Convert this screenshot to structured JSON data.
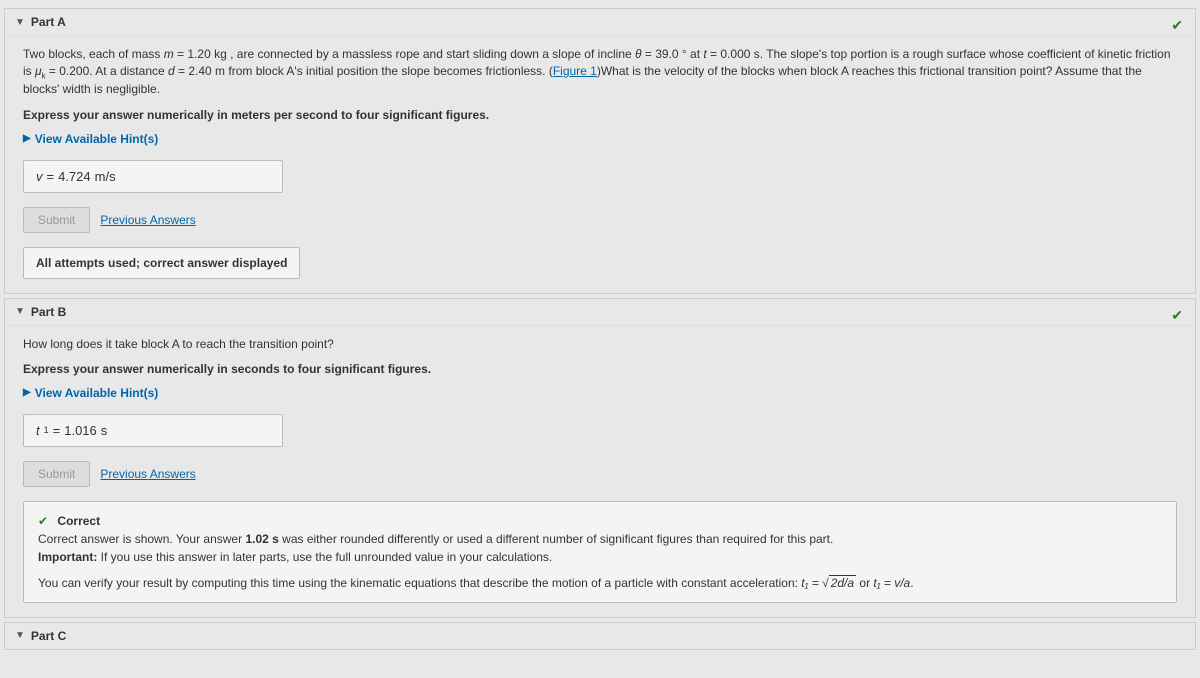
{
  "partA": {
    "title": "Part A",
    "problem_html": "Two blocks, each of mass <span class='it'>m</span> = 1.20 kg , are connected by a massless rope and start sliding down a slope of incline <span class='it'>θ</span> = 39.0 ° at <span class='it'>t</span> = 0.000 s. The slope's top portion is a rough surface whose coefficient of kinetic friction is <span class='it'>μ</span><span class='sub2'>k</span> = 0.200. At a distance <span class='it'>d</span> = 2.40 m from block A's initial position the slope becomes frictionless. (<span class='link' data-name='figure-link' data-interactable='true'>Figure 1</span>)What is the velocity of the blocks when block A reaches this frictional transition point? Assume that the blocks' width is negligible.",
    "instruction": "Express your answer numerically in meters per second to four significant figures.",
    "hints_label": "View Available Hint(s)",
    "answer_var": "v",
    "answer_value": "4.724",
    "answer_unit": "m/s",
    "submit_label": "Submit",
    "prev_label": "Previous Answers",
    "feedback": "All attempts used; correct answer displayed"
  },
  "partB": {
    "title": "Part B",
    "question": "How long does it take block A to reach the transition point?",
    "instruction": "Express your answer numerically in seconds to four significant figures.",
    "hints_label": "View Available Hint(s)",
    "answer_var": "t",
    "answer_sub": "1",
    "answer_value": "1.016",
    "answer_unit": "s",
    "submit_label": "Submit",
    "prev_label": "Previous Answers",
    "correct_head": "Correct",
    "correct_line1_a": "Correct answer is shown. Your answer ",
    "correct_line1_b": "1.02 s",
    "correct_line1_c": " was either rounded differently or used a different number of significant figures than required for this part.",
    "important_label": "Important:",
    "important_text": " If you use this answer in later parts, use the full unrounded value in your calculations.",
    "verify_a": "You can verify your result by computing this time using the kinematic equations that describe the motion of a particle with constant acceleration: ",
    "verify_eq1_lhs": "t₁ = ",
    "verify_eq1_sqrt": "2d/a",
    "verify_or": " or ",
    "verify_eq2": "t₁ = v/a",
    "verify_end": "."
  },
  "partC": {
    "title": "Part C"
  }
}
